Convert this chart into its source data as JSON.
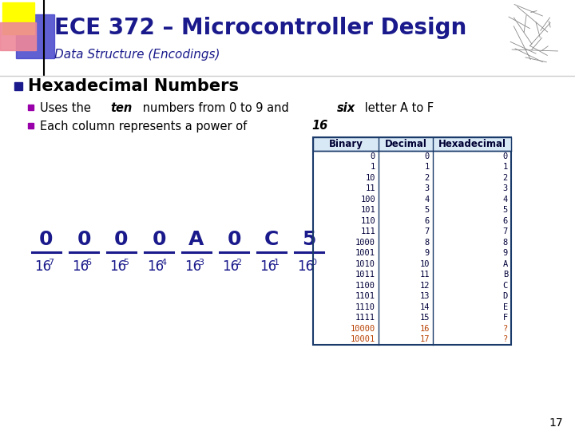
{
  "title": "ECE 372 – Microcontroller Design",
  "subtitle": "Data Structure (Encodings)",
  "bg_color": "#ffffff",
  "title_color": "#1a1a8c",
  "subtitle_color": "#1a1a8c",
  "slide_number": "17",
  "hex_section_title": "Hexadecimal Numbers",
  "bullet1_pre": "Uses the ",
  "bullet1_bold1": "ten",
  "bullet1_mid": " numbers from 0 to 9 and ",
  "bullet1_bold2": "six",
  "bullet1_end": " letter A to F",
  "bullet2_pre": "Each column represents a power of ",
  "bullet2_bold": "16",
  "table_binary": [
    "0",
    "1",
    "10",
    "11",
    "100",
    "101",
    "110",
    "111",
    "1000",
    "1001",
    "1010",
    "1011",
    "1100",
    "1101",
    "1110",
    "1111",
    "10000",
    "10001"
  ],
  "table_decimal": [
    "0",
    "1",
    "2",
    "3",
    "4",
    "5",
    "6",
    "7",
    "8",
    "9",
    "10",
    "11",
    "12",
    "13",
    "14",
    "15",
    "16",
    "17"
  ],
  "table_hex": [
    "0",
    "1",
    "2",
    "3",
    "4",
    "5",
    "6",
    "7",
    "8",
    "9",
    "A",
    "B",
    "C",
    "D",
    "E",
    "F",
    "?",
    "?"
  ],
  "table_normal_color": "#00003a",
  "table_red_color": "#b84000",
  "table_border_color": "#1a3a6a",
  "power_numerators": [
    "0",
    "0",
    "0",
    "0",
    "A",
    "0",
    "C",
    "5"
  ],
  "power_denoms_base": [
    "16",
    "16",
    "16",
    "16",
    "16",
    "16",
    "16",
    "16"
  ],
  "power_exponents": [
    "7",
    "6",
    "5",
    "4",
    "3",
    "2",
    "1",
    "0"
  ],
  "power_color": "#1a1a8c",
  "bullet_square_color": "#1a1a8c",
  "sub_bullet_color": "#9900aa"
}
